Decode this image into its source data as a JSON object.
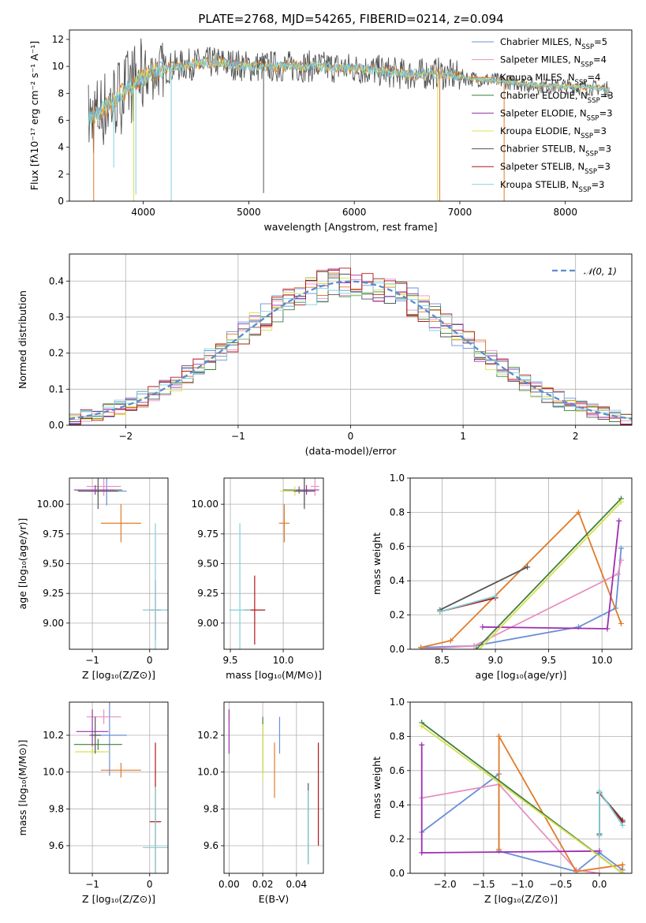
{
  "figure": {
    "title": "PLATE=2768, MJD=54265, FIBERID=0214, z=0.094"
  },
  "colors": {
    "Chabrier MILES": "#6a8fd8",
    "Salpeter MILES": "#e890c0",
    "Kroupa MILES": "#e07b2a",
    "Chabrier ELODIE": "#3f7f3f",
    "Salpeter ELODIE": "#9c2fb0",
    "Kroupa ELODIE": "#d8e050",
    "Chabrier STELIB": "#555555",
    "Salpeter STELIB": "#b01818",
    "Kroupa STELIB": "#80d0d8",
    "gaussian": "#5b8bd0"
  },
  "chart_data": [
    {
      "id": "spectrum",
      "type": "line",
      "title": "PLATE=2768, MJD=54265, FIBERID=0214, z=0.094",
      "xlabel": "wavelength [Angstrom, rest frame]",
      "ylabel": "Flux [fλ10⁻¹⁷ erg cm⁻² s⁻¹ A⁻¹]",
      "xlim": [
        3300,
        8630
      ],
      "ylim": [
        0,
        12.7
      ],
      "xticks": [
        4000,
        5000,
        6000,
        7000,
        8000
      ],
      "yticks": [
        0,
        2,
        4,
        6,
        8,
        10,
        12
      ],
      "grid": false,
      "legend_position": "top-right",
      "legend": [
        {
          "label": "Chabrier MILES, N",
          "sub": "SSP",
          "suffix": "=5",
          "color_key": "Chabrier MILES"
        },
        {
          "label": "Salpeter MILES, N",
          "sub": "SSP",
          "suffix": "=4",
          "color_key": "Salpeter MILES"
        },
        {
          "label": "Kroupa MILES, N",
          "sub": "SSP",
          "suffix": "=4",
          "color_key": "Kroupa MILES"
        },
        {
          "label": "Chabrier ELODIE, N",
          "sub": "SSP",
          "suffix": "=3",
          "color_key": "Chabrier ELODIE"
        },
        {
          "label": "Salpeter ELODIE, N",
          "sub": "SSP",
          "suffix": "=3",
          "color_key": "Salpeter ELODIE"
        },
        {
          "label": "Kroupa ELODIE, N",
          "sub": "SSP",
          "suffix": "=3",
          "color_key": "Kroupa ELODIE"
        },
        {
          "label": "Chabrier STELIB, N",
          "sub": "SSP",
          "suffix": "=3",
          "color_key": "Chabrier STELIB"
        },
        {
          "label": "Salpeter STELIB, N",
          "sub": "SSP",
          "suffix": "=3",
          "color_key": "Salpeter STELIB"
        },
        {
          "label": "Kroupa STELIB, N",
          "sub": "SSP",
          "suffix": "=3",
          "color_key": "Kroupa STELIB"
        }
      ],
      "continuum_points": [
        [
          3500,
          6.1
        ],
        [
          3650,
          7.0
        ],
        [
          3800,
          8.0
        ],
        [
          3950,
          9.0
        ],
        [
          4100,
          9.6
        ],
        [
          4300,
          10.0
        ],
        [
          4500,
          10.2
        ],
        [
          4700,
          10.3
        ],
        [
          5000,
          10.0
        ],
        [
          5300,
          10.0
        ],
        [
          5600,
          10.0
        ],
        [
          5900,
          9.9
        ],
        [
          6200,
          9.7
        ],
        [
          6500,
          9.4
        ],
        [
          6800,
          9.5
        ],
        [
          7100,
          9.1
        ],
        [
          7400,
          8.9
        ],
        [
          7700,
          8.6
        ],
        [
          8000,
          8.5
        ],
        [
          8300,
          8.4
        ],
        [
          8400,
          8.3
        ]
      ],
      "absorption_features": [
        {
          "series": "Kroupa MILES",
          "wavelength": 3530,
          "depth_to": 0
        },
        {
          "series": "Kroupa STELIB",
          "wavelength": 3720,
          "depth_to": 2.5
        },
        {
          "series": "Kroupa STELIB",
          "wavelength": 3930,
          "depth_to": 0.5
        },
        {
          "series": "Kroupa ELODIE",
          "wavelength": 3910,
          "depth_to": 0
        },
        {
          "series": "Kroupa STELIB",
          "wavelength": 4265,
          "depth_to": 0
        },
        {
          "series": "Chabrier STELIB",
          "wavelength": 5140,
          "depth_to": 0.6
        },
        {
          "series": "Kroupa ELODIE",
          "wavelength": 6790,
          "depth_to": 0
        },
        {
          "series": "Kroupa MILES",
          "wavelength": 6810,
          "depth_to": 0
        },
        {
          "series": "Kroupa MILES",
          "wavelength": 7420,
          "depth_to": 0
        }
      ]
    },
    {
      "id": "residuals",
      "type": "line",
      "xlabel": "(data-model)/error",
      "ylabel": "Normed distribution",
      "xlim": [
        -2.5,
        2.5
      ],
      "ylim": [
        0,
        0.475
      ],
      "xticks": [
        -2,
        -1,
        0,
        1,
        2
      ],
      "yticks": [
        0.0,
        0.1,
        0.2,
        0.3,
        0.4
      ],
      "grid": true,
      "legend_position": "top-right",
      "gaussian_label": "𝒩(0, 1)"
    },
    {
      "id": "age_vs_Z",
      "type": "scatter",
      "xlabel": "Z [log₁₀(Z/Z⊙)]",
      "ylabel": "age  [log₁₀(age/yr)]",
      "xlim": [
        -1.4,
        0.32
      ],
      "ylim": [
        8.78,
        10.22
      ],
      "xticks": [
        -1,
        0
      ],
      "yticks": [
        9.0,
        9.25,
        9.5,
        9.75,
        10.0
      ],
      "grid": true,
      "points": [
        {
          "series": "Chabrier MILES",
          "x": -0.75,
          "y": 10.11,
          "xerr": 0.35,
          "yerr": 0.12
        },
        {
          "series": "Salpeter MILES",
          "x": -0.8,
          "y": 10.15,
          "xerr": 0.3,
          "yerr": 0.08
        },
        {
          "series": "Kroupa MILES",
          "x": -0.5,
          "y": 9.84,
          "xerr": 0.35,
          "yerr": 0.16
        },
        {
          "series": "Chabrier ELODIE",
          "x": -0.9,
          "y": 10.12,
          "xerr": 0.42,
          "yerr": 0.03
        },
        {
          "series": "Salpeter ELODIE",
          "x": -0.95,
          "y": 10.12,
          "xerr": 0.35,
          "yerr": 0.04
        },
        {
          "series": "Kroupa ELODIE",
          "x": -0.9,
          "y": 10.11,
          "xerr": 0.35,
          "yerr": 0.04
        },
        {
          "series": "Chabrier STELIB",
          "x": -0.9,
          "y": 10.11,
          "xerr": 0.35,
          "yerr": 0.15
        },
        {
          "series": "Salpeter STELIB",
          "x": 0.1,
          "y": 9.11,
          "xerr": 0.1,
          "yerr": 0.25
        },
        {
          "series": "Kroupa STELIB",
          "x": 0.1,
          "y": 9.11,
          "xerr": 0.22,
          "yerr": 0.73
        }
      ]
    },
    {
      "id": "age_vs_mass",
      "type": "scatter",
      "xlabel": "mass [log₁₀(M/M⊙)]",
      "ylabel": "",
      "xlim": [
        9.44,
        10.38
      ],
      "ylim": [
        8.78,
        10.22
      ],
      "xticks": [
        9.5,
        10.0
      ],
      "yticks": [
        9.0,
        9.25,
        9.5,
        9.75,
        10.0
      ],
      "grid": true,
      "points": [
        {
          "series": "Chabrier MILES",
          "x": 10.2,
          "y": 10.11,
          "xerr": 0.05,
          "yerr": 0.12
        },
        {
          "series": "Salpeter MILES",
          "x": 10.3,
          "y": 10.15,
          "xerr": 0.04,
          "yerr": 0.08
        },
        {
          "series": "Kroupa MILES",
          "x": 10.01,
          "y": 9.84,
          "xerr": 0.05,
          "yerr": 0.16
        },
        {
          "series": "Chabrier ELODIE",
          "x": 10.15,
          "y": 10.12,
          "xerr": 0.15,
          "yerr": 0.03
        },
        {
          "series": "Salpeter ELODIE",
          "x": 10.22,
          "y": 10.12,
          "xerr": 0.12,
          "yerr": 0.04
        },
        {
          "series": "Kroupa ELODIE",
          "x": 10.11,
          "y": 10.11,
          "xerr": 0.14,
          "yerr": 0.04
        },
        {
          "series": "Chabrier STELIB",
          "x": 10.2,
          "y": 10.11,
          "xerr": 0.1,
          "yerr": 0.15
        },
        {
          "series": "Salpeter STELIB",
          "x": 9.73,
          "y": 9.11,
          "xerr": 0.1,
          "yerr": 0.29
        },
        {
          "series": "Kroupa STELIB",
          "x": 9.59,
          "y": 9.11,
          "xerr": 0.1,
          "yerr": 0.73
        }
      ]
    },
    {
      "id": "weight_vs_age",
      "type": "line",
      "xlabel": "age  [log₁₀(age/yr)]",
      "ylabel": "mass weight",
      "xlim": [
        8.2,
        10.28
      ],
      "ylim": [
        0,
        1.0
      ],
      "xticks": [
        8.5,
        9.0,
        9.5,
        10.0
      ],
      "yticks": [
        0.0,
        0.2,
        0.4,
        0.6,
        0.8,
        1.0
      ],
      "grid": true,
      "series": [
        {
          "name": "Chabrier MILES",
          "x": [
            8.3,
            8.8,
            9.78,
            10.13,
            10.18
          ],
          "y": [
            0.01,
            0.02,
            0.13,
            0.24,
            0.59
          ]
        },
        {
          "name": "Salpeter MILES",
          "x": [
            8.3,
            8.8,
            10.15,
            10.18
          ],
          "y": [
            0.0,
            0.02,
            0.44,
            0.52
          ]
        },
        {
          "name": "Kroupa MILES",
          "x": [
            8.3,
            8.58,
            9.78,
            10.18
          ],
          "y": [
            0.01,
            0.05,
            0.8,
            0.15
          ]
        },
        {
          "name": "Chabrier ELODIE",
          "x": [
            8.82,
            10.18
          ],
          "y": [
            0.0,
            0.88
          ]
        },
        {
          "name": "Salpeter ELODIE",
          "x": [
            8.88,
            10.05,
            10.16
          ],
          "y": [
            0.13,
            0.12,
            0.75
          ]
        },
        {
          "name": "Kroupa ELODIE",
          "x": [
            8.85,
            10.18
          ],
          "y": [
            0.0,
            0.86
          ]
        },
        {
          "name": "Chabrier STELIB",
          "x": [
            8.48,
            9.3
          ],
          "y": [
            0.23,
            0.48
          ]
        },
        {
          "name": "Salpeter STELIB",
          "x": [
            8.48,
            9.0
          ],
          "y": [
            0.22,
            0.3
          ]
        },
        {
          "name": "Kroupa STELIB",
          "x": [
            8.48,
            9.0
          ],
          "y": [
            0.22,
            0.31
          ]
        }
      ]
    },
    {
      "id": "mass_vs_Z",
      "type": "scatter",
      "xlabel": "Z [log₁₀(Z/Z⊙)]",
      "ylabel": "mass [log₁₀(M/M⊙)]",
      "xlim": [
        -1.4,
        0.32
      ],
      "ylim": [
        9.45,
        10.38
      ],
      "xticks": [
        -1,
        0
      ],
      "yticks": [
        9.6,
        9.8,
        10.0,
        10.2
      ],
      "grid": true,
      "points": [
        {
          "series": "Chabrier MILES",
          "x": -0.7,
          "y": 10.2,
          "xerr": 0.3,
          "yerr": 0.22
        },
        {
          "series": "Salpeter MILES",
          "x": -0.8,
          "y": 10.3,
          "xerr": 0.3,
          "yerr": 0.04
        },
        {
          "series": "Kroupa MILES",
          "x": -0.5,
          "y": 10.01,
          "xerr": 0.35,
          "yerr": 0.04
        },
        {
          "series": "Chabrier ELODIE",
          "x": -0.9,
          "y": 10.15,
          "xerr": 0.42,
          "yerr": 0.03
        },
        {
          "series": "Salpeter ELODIE",
          "x": -1.0,
          "y": 10.22,
          "xerr": 0.28,
          "yerr": 0.12
        },
        {
          "series": "Kroupa ELODIE",
          "x": -1.0,
          "y": 10.11,
          "xerr": 0.3,
          "yerr": 0.03
        },
        {
          "series": "Chabrier STELIB",
          "x": -0.95,
          "y": 10.2,
          "xerr": 0.1,
          "yerr": 0.1
        },
        {
          "series": "Salpeter STELIB",
          "x": 0.1,
          "y": 9.73,
          "xerr": 0.1,
          "yerr": 0.43
        },
        {
          "series": "Kroupa STELIB",
          "x": 0.1,
          "y": 9.59,
          "xerr": 0.22,
          "yerr": 0.33
        }
      ]
    },
    {
      "id": "mass_vs_EBV",
      "type": "scatter",
      "xlabel": "E(B-V)",
      "ylabel": "",
      "xlim": [
        -0.003,
        0.056
      ],
      "ylim": [
        9.45,
        10.38
      ],
      "xticks": [
        0.0,
        0.02,
        0.04
      ],
      "yticks": [
        9.6,
        9.8,
        10.0,
        10.2
      ],
      "grid": true,
      "points": [
        {
          "series": "Chabrier MILES",
          "x": 0.03,
          "y": 10.2,
          "xerr": 0,
          "yerr": 0.1
        },
        {
          "series": "Salpeter MILES",
          "x": 0.0,
          "y": 10.3,
          "xerr": 0,
          "yerr": 0.04
        },
        {
          "series": "Kroupa MILES",
          "x": 0.027,
          "y": 10.01,
          "xerr": 0,
          "yerr": 0.15
        },
        {
          "series": "Chabrier ELODIE",
          "x": 0.02,
          "y": 10.15,
          "xerr": 0,
          "yerr": 0.15
        },
        {
          "series": "Salpeter ELODIE",
          "x": 0.0,
          "y": 10.22,
          "xerr": 0,
          "yerr": 0.12
        },
        {
          "series": "Kroupa ELODIE",
          "x": 0.02,
          "y": 10.11,
          "xerr": 0,
          "yerr": 0.15
        },
        {
          "series": "Chabrier STELIB",
          "x": 0.047,
          "y": 9.72,
          "xerr": 0,
          "yerr": 0.22
        },
        {
          "series": "Salpeter STELIB",
          "x": 0.053,
          "y": 9.88,
          "xerr": 0,
          "yerr": 0.28
        },
        {
          "series": "Kroupa STELIB",
          "x": 0.047,
          "y": 9.7,
          "xerr": 0,
          "yerr": 0.2
        }
      ]
    },
    {
      "id": "weight_vs_Z",
      "type": "line",
      "xlabel": "Z [log₁₀(Z/Z⊙)]",
      "ylabel": "mass weight",
      "xlim": [
        -2.45,
        0.42
      ],
      "ylim": [
        0,
        1.0
      ],
      "xticks": [
        -2.0,
        -1.5,
        -1.0,
        -0.5,
        0.0
      ],
      "yticks": [
        0.0,
        0.2,
        0.4,
        0.6,
        0.8,
        1.0
      ],
      "grid": true,
      "series": [
        {
          "name": "Chabrier MILES",
          "x": [
            -2.3,
            -1.3,
            -1.3,
            -0.3,
            0.0,
            0.3
          ],
          "y": [
            0.24,
            0.58,
            0.13,
            0.01,
            0.12,
            0.02
          ]
        },
        {
          "name": "Salpeter MILES",
          "x": [
            -2.3,
            -1.3,
            -0.3,
            0.0
          ],
          "y": [
            0.44,
            0.52,
            0.02,
            0.0
          ]
        },
        {
          "name": "Kroupa MILES",
          "x": [
            -1.3,
            -1.3,
            -0.3,
            0.3,
            0.3
          ],
          "y": [
            0.14,
            0.8,
            0.01,
            0.05,
            0.0
          ]
        },
        {
          "name": "Chabrier ELODIE",
          "x": [
            -2.3,
            0.3
          ],
          "y": [
            0.88,
            0.0
          ]
        },
        {
          "name": "Salpeter ELODIE",
          "x": [
            -2.3,
            -2.3,
            0.0
          ],
          "y": [
            0.75,
            0.12,
            0.13
          ]
        },
        {
          "name": "Kroupa ELODIE",
          "x": [
            -2.3,
            0.3
          ],
          "y": [
            0.86,
            0.0
          ]
        },
        {
          "name": "Chabrier STELIB",
          "x": [
            0.0,
            0.0,
            0.3
          ],
          "y": [
            0.23,
            0.47,
            0.31
          ]
        },
        {
          "name": "Salpeter STELIB",
          "x": [
            0.0,
            0.0,
            0.3
          ],
          "y": [
            0.22,
            0.47,
            0.3
          ]
        },
        {
          "name": "Kroupa STELIB",
          "x": [
            0.0,
            0.0,
            0.3
          ],
          "y": [
            0.22,
            0.48,
            0.28
          ]
        }
      ]
    }
  ]
}
